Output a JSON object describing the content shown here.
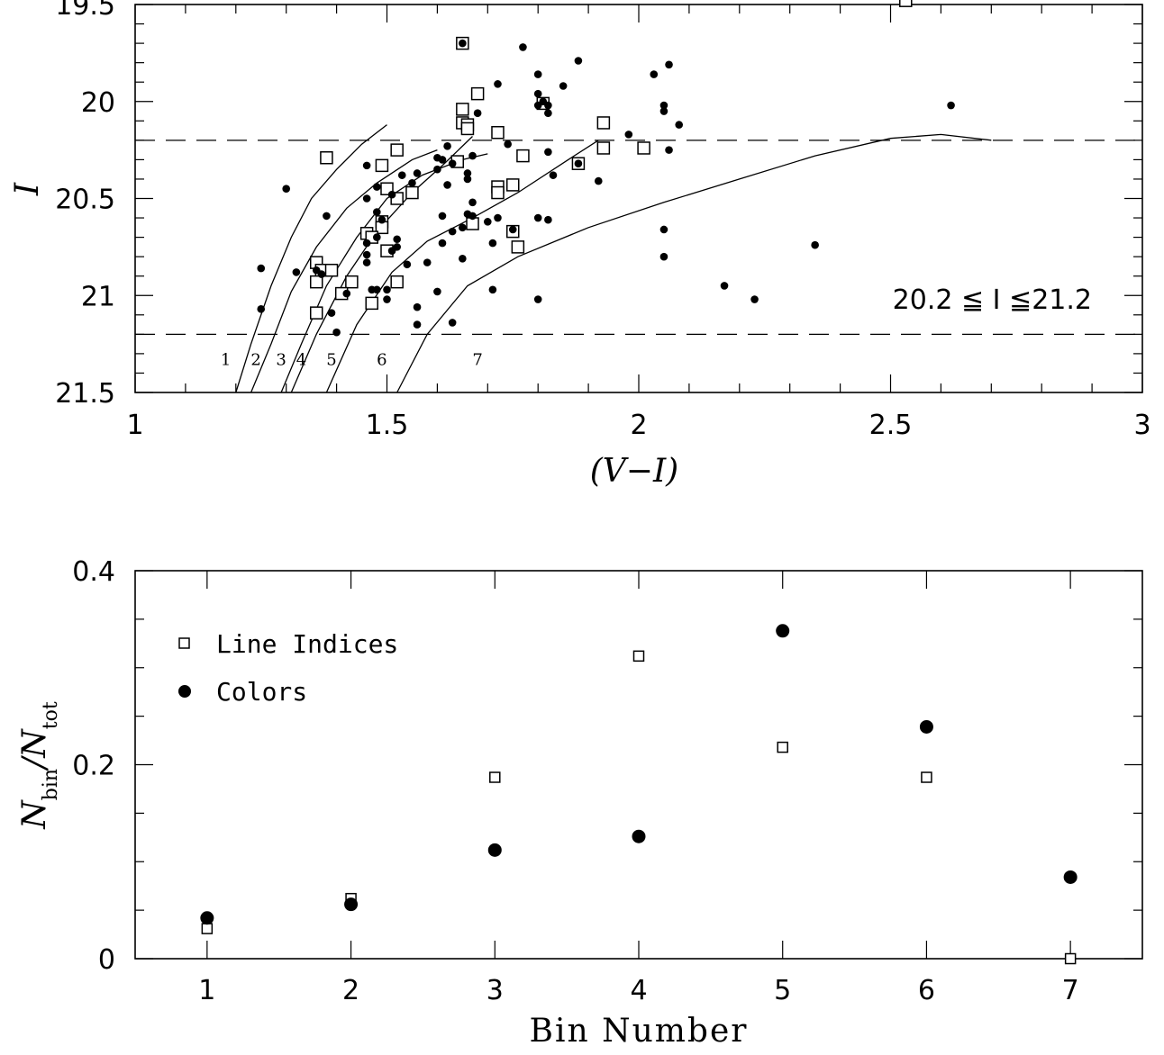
{
  "chart_data": [
    {
      "type": "scatter",
      "xlabel": "(V−I)",
      "ylabel": "I",
      "xlim": [
        1,
        3
      ],
      "ylim": [
        21.5,
        19.5
      ],
      "y_inverted": true,
      "x_ticks": [
        "1",
        "1.5",
        "2",
        "2.5",
        "3"
      ],
      "y_ticks": [
        "19.5",
        "20",
        "20.5",
        "21",
        "21.5"
      ],
      "annotation": "20.2 ≦ I ≦21.2",
      "dashed_lines_I": [
        20.2,
        21.2
      ],
      "bin_labels": [
        "1",
        "2",
        "3",
        "4",
        "5",
        "6",
        "7"
      ],
      "bin_label_x": [
        1.18,
        1.24,
        1.29,
        1.33,
        1.39,
        1.49,
        1.68
      ],
      "bin_label_y": 21.33,
      "boundary_curves": [
        {
          "x": [
            1.2,
            1.23,
            1.27,
            1.31,
            1.35,
            1.4,
            1.45,
            1.5
          ],
          "y": [
            21.5,
            21.25,
            20.95,
            20.7,
            20.5,
            20.35,
            20.22,
            20.12
          ]
        },
        {
          "x": [
            1.23,
            1.27,
            1.31,
            1.36,
            1.42,
            1.48,
            1.55,
            1.6
          ],
          "y": [
            21.5,
            21.25,
            20.98,
            20.75,
            20.55,
            20.42,
            20.3,
            20.25
          ]
        },
        {
          "x": [
            1.29,
            1.33,
            1.38,
            1.44,
            1.5,
            1.57,
            1.65,
            1.7
          ],
          "y": [
            21.5,
            21.25,
            20.95,
            20.7,
            20.5,
            20.38,
            20.3,
            20.27
          ]
        },
        {
          "x": [
            1.31,
            1.36,
            1.42,
            1.48,
            1.55,
            1.61,
            1.67
          ],
          "y": [
            21.5,
            21.2,
            20.9,
            20.67,
            20.47,
            20.33,
            20.18
          ]
        },
        {
          "x": [
            1.38,
            1.44,
            1.51,
            1.58,
            1.67,
            1.76,
            1.86,
            1.92
          ],
          "y": [
            21.5,
            21.15,
            20.88,
            20.72,
            20.6,
            20.47,
            20.3,
            20.2
          ]
        },
        {
          "x": [
            1.52,
            1.58,
            1.66,
            1.76,
            1.9,
            2.05,
            2.2,
            2.35,
            2.5,
            2.6,
            2.7
          ],
          "y": [
            21.5,
            21.2,
            20.95,
            20.8,
            20.65,
            20.52,
            20.4,
            20.28,
            20.19,
            20.17,
            20.2
          ]
        }
      ],
      "series": [
        {
          "name": "Line Indices",
          "marker": "open-square",
          "points": [
            [
              1.65,
              19.7
            ],
            [
              1.68,
              19.96
            ],
            [
              1.81,
              20.01
            ],
            [
              1.65,
              20.04
            ],
            [
              1.65,
              20.11
            ],
            [
              1.66,
              20.12
            ],
            [
              1.66,
              20.14
            ],
            [
              1.72,
              20.16
            ],
            [
              1.93,
              20.11
            ],
            [
              1.93,
              20.24
            ],
            [
              2.01,
              20.24
            ],
            [
              1.52,
              20.25
            ],
            [
              1.38,
              20.29
            ],
            [
              1.77,
              20.28
            ],
            [
              1.64,
              20.31
            ],
            [
              1.49,
              20.33
            ],
            [
              1.88,
              20.32
            ],
            [
              1.72,
              20.44
            ],
            [
              1.75,
              20.43
            ],
            [
              1.5,
              20.45
            ],
            [
              1.72,
              20.47
            ],
            [
              1.55,
              20.47
            ],
            [
              1.52,
              20.5
            ],
            [
              1.49,
              20.62
            ],
            [
              1.49,
              20.65
            ],
            [
              1.67,
              20.63
            ],
            [
              1.46,
              20.68
            ],
            [
              1.47,
              20.7
            ],
            [
              1.75,
              20.67
            ],
            [
              1.76,
              20.75
            ],
            [
              1.5,
              20.77
            ],
            [
              1.36,
              20.83
            ],
            [
              1.37,
              20.87
            ],
            [
              1.39,
              20.87
            ],
            [
              1.36,
              20.93
            ],
            [
              1.43,
              20.93
            ],
            [
              1.52,
              20.93
            ],
            [
              1.41,
              20.99
            ],
            [
              1.47,
              21.04
            ],
            [
              1.36,
              21.09
            ],
            [
              2.53,
              19.48
            ]
          ]
        },
        {
          "name": "Colors",
          "marker": "filled-circle",
          "points": [
            [
              1.65,
              19.7
            ],
            [
              1.77,
              19.72
            ],
            [
              1.88,
              19.79
            ],
            [
              1.8,
              19.86
            ],
            [
              2.06,
              19.81
            ],
            [
              2.03,
              19.86
            ],
            [
              1.72,
              19.91
            ],
            [
              1.85,
              19.92
            ],
            [
              1.8,
              19.96
            ],
            [
              1.81,
              20.0
            ],
            [
              1.82,
              20.02
            ],
            [
              1.8,
              20.02
            ],
            [
              1.68,
              20.06
            ],
            [
              1.82,
              20.06
            ],
            [
              2.05,
              20.02
            ],
            [
              2.05,
              20.05
            ],
            [
              2.08,
              20.12
            ],
            [
              1.98,
              20.17
            ],
            [
              1.74,
              20.22
            ],
            [
              1.62,
              20.23
            ],
            [
              1.82,
              20.26
            ],
            [
              2.06,
              20.25
            ],
            [
              1.67,
              20.28
            ],
            [
              1.6,
              20.29
            ],
            [
              1.61,
              20.3
            ],
            [
              1.63,
              20.32
            ],
            [
              1.46,
              20.33
            ],
            [
              1.88,
              20.32
            ],
            [
              1.6,
              20.35
            ],
            [
              1.56,
              20.37
            ],
            [
              1.53,
              20.38
            ],
            [
              1.66,
              20.37
            ],
            [
              1.55,
              20.42
            ],
            [
              1.62,
              20.43
            ],
            [
              1.66,
              20.4
            ],
            [
              1.83,
              20.38
            ],
            [
              1.92,
              20.41
            ],
            [
              1.3,
              20.45
            ],
            [
              1.48,
              20.44
            ],
            [
              1.51,
              20.48
            ],
            [
              1.46,
              20.5
            ],
            [
              1.67,
              20.52
            ],
            [
              1.48,
              20.57
            ],
            [
              1.38,
              20.59
            ],
            [
              1.61,
              20.59
            ],
            [
              1.66,
              20.58
            ],
            [
              1.72,
              20.6
            ],
            [
              1.8,
              20.6
            ],
            [
              1.82,
              20.61
            ],
            [
              1.67,
              20.59
            ],
            [
              1.49,
              20.61
            ],
            [
              1.7,
              20.62
            ],
            [
              1.65,
              20.65
            ],
            [
              1.63,
              20.67
            ],
            [
              1.75,
              20.66
            ],
            [
              2.05,
              20.66
            ],
            [
              1.48,
              20.7
            ],
            [
              1.52,
              20.71
            ],
            [
              1.61,
              20.73
            ],
            [
              1.71,
              20.73
            ],
            [
              1.46,
              20.73
            ],
            [
              1.52,
              20.75
            ],
            [
              1.51,
              20.77
            ],
            [
              2.35,
              20.74
            ],
            [
              1.46,
              20.79
            ],
            [
              1.46,
              20.83
            ],
            [
              1.58,
              20.83
            ],
            [
              1.54,
              20.84
            ],
            [
              1.65,
              20.81
            ],
            [
              2.05,
              20.8
            ],
            [
              1.36,
              20.87
            ],
            [
              1.25,
              20.86
            ],
            [
              1.32,
              20.88
            ],
            [
              1.37,
              20.89
            ],
            [
              2.17,
              20.95
            ],
            [
              1.47,
              20.97
            ],
            [
              1.5,
              20.97
            ],
            [
              1.6,
              20.98
            ],
            [
              1.71,
              20.97
            ],
            [
              1.42,
              20.99
            ],
            [
              1.48,
              20.97
            ],
            [
              1.5,
              21.02
            ],
            [
              1.8,
              21.02
            ],
            [
              2.23,
              21.02
            ],
            [
              1.39,
              21.09
            ],
            [
              1.56,
              21.06
            ],
            [
              1.25,
              21.07
            ],
            [
              1.56,
              21.15
            ],
            [
              1.63,
              21.14
            ],
            [
              1.4,
              21.19
            ],
            [
              2.62,
              20.02
            ]
          ]
        }
      ]
    },
    {
      "type": "scatter",
      "xlabel": "Bin Number",
      "ylabel": "N_bin/N_tot",
      "ylabel_main": "N",
      "ylabel_sub1": "bin",
      "ylabel_slash": "/N",
      "ylabel_sub2": "tot",
      "xlim": [
        0.5,
        7.5
      ],
      "ylim": [
        0,
        0.4
      ],
      "x_ticks": [
        "1",
        "2",
        "3",
        "4",
        "5",
        "6",
        "7"
      ],
      "y_ticks": [
        "0",
        "0.2",
        "0.4"
      ],
      "legend_placement": "top-left",
      "categories": [
        1,
        2,
        3,
        4,
        5,
        6,
        7
      ],
      "series": [
        {
          "name": "Line Indices",
          "marker": "open-square",
          "values": [
            0.031,
            0.062,
            0.187,
            0.312,
            0.218,
            0.187,
            0.0
          ]
        },
        {
          "name": "Colors",
          "marker": "filled-circle",
          "values": [
            0.042,
            0.056,
            0.112,
            0.126,
            0.338,
            0.239,
            0.084
          ]
        }
      ]
    }
  ]
}
